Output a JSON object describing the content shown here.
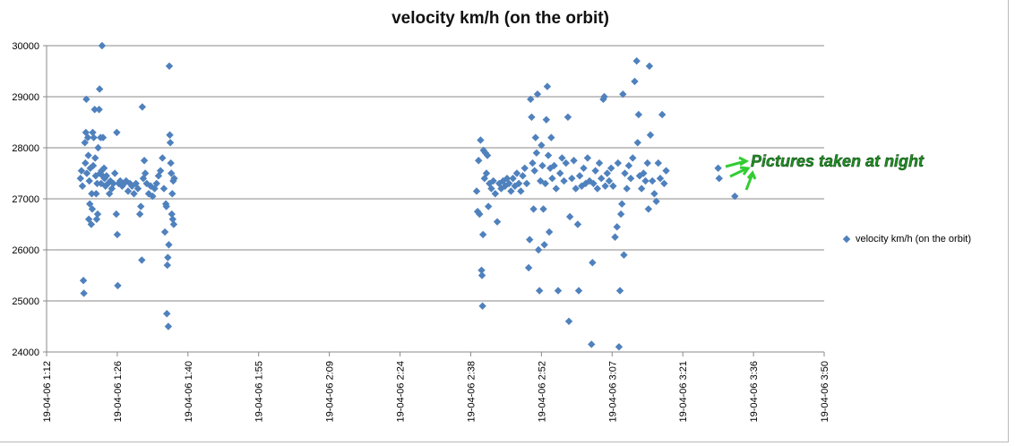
{
  "chart_data": {
    "type": "scatter",
    "title": "velocity km/h (on the orbit)",
    "xlabel": "",
    "ylabel": "",
    "ylim": [
      24000,
      30000
    ],
    "yticks": [
      24000,
      25000,
      26000,
      27000,
      28000,
      29000,
      30000
    ],
    "xticks": [
      "19-04-06 1:12",
      "19-04-06 1:26",
      "19-04-06 1:40",
      "19-04-06 1:55",
      "19-04-06 2:09",
      "19-04-06 2:24",
      "19-04-06 2:38",
      "19-04-06 2:52",
      "19-04-06 3:07",
      "19-04-06 3:21",
      "19-04-06 3:36",
      "19-04-06 3:50"
    ],
    "xtick_minutes": [
      72,
      86.4,
      100.8,
      115.2,
      129.6,
      144,
      158.4,
      172.8,
      187.2,
      201.6,
      216,
      230.4
    ],
    "x_unit": "minutes after 19-04-06 0:00",
    "grid": true,
    "legend_position": "right",
    "color": "#4f81bd",
    "series": [
      {
        "name": "velocity km/h (on the orbit)",
        "points": [
          [
            78.9,
            27400
          ],
          [
            79.1,
            27550
          ],
          [
            79.3,
            27250
          ],
          [
            79.5,
            25400
          ],
          [
            79.6,
            25150
          ],
          [
            79.8,
            28100
          ],
          [
            79.9,
            27700
          ],
          [
            80.0,
            28300
          ],
          [
            80.1,
            28950
          ],
          [
            80.2,
            27500
          ],
          [
            80.4,
            28200
          ],
          [
            80.5,
            27850
          ],
          [
            80.6,
            26600
          ],
          [
            80.7,
            27350
          ],
          [
            80.8,
            26900
          ],
          [
            80.9,
            27600
          ],
          [
            81.1,
            26500
          ],
          [
            81.2,
            27100
          ],
          [
            81.3,
            26800
          ],
          [
            81.4,
            28300
          ],
          [
            81.5,
            27650
          ],
          [
            81.6,
            28200
          ],
          [
            81.8,
            28750
          ],
          [
            81.9,
            27800
          ],
          [
            82.0,
            27450
          ],
          [
            82.1,
            27100
          ],
          [
            82.2,
            26600
          ],
          [
            82.3,
            27300
          ],
          [
            82.4,
            26700
          ],
          [
            82.5,
            28000
          ],
          [
            82.7,
            28750
          ],
          [
            82.8,
            29150
          ],
          [
            82.9,
            27500
          ],
          [
            83.0,
            28200
          ],
          [
            83.1,
            27300
          ],
          [
            83.2,
            27550
          ],
          [
            83.3,
            30000
          ],
          [
            83.4,
            27450
          ],
          [
            83.5,
            28200
          ],
          [
            83.7,
            27600
          ],
          [
            83.8,
            27400
          ],
          [
            84.0,
            27250
          ],
          [
            84.2,
            27450
          ],
          [
            84.5,
            27300
          ],
          [
            84.8,
            27100
          ],
          [
            85.0,
            27350
          ],
          [
            85.3,
            27200
          ],
          [
            85.6,
            27300
          ],
          [
            85.9,
            27500
          ],
          [
            86.2,
            26700
          ],
          [
            86.3,
            28300
          ],
          [
            86.4,
            26300
          ],
          [
            86.5,
            25300
          ],
          [
            86.7,
            27300
          ],
          [
            87.0,
            27350
          ],
          [
            87.4,
            27250
          ],
          [
            87.8,
            27300
          ],
          [
            88.2,
            27350
          ],
          [
            88.6,
            27150
          ],
          [
            89.0,
            27300
          ],
          [
            89.4,
            27250
          ],
          [
            89.8,
            27100
          ],
          [
            90.2,
            27300
          ],
          [
            90.6,
            27200
          ],
          [
            91.0,
            26700
          ],
          [
            91.2,
            26850
          ],
          [
            91.4,
            25800
          ],
          [
            91.5,
            28800
          ],
          [
            91.7,
            27400
          ],
          [
            91.9,
            27750
          ],
          [
            92.1,
            27500
          ],
          [
            92.4,
            27300
          ],
          [
            92.8,
            27100
          ],
          [
            93.2,
            27250
          ],
          [
            93.6,
            27050
          ],
          [
            94.0,
            27200
          ],
          [
            94.4,
            27300
          ],
          [
            94.8,
            27450
          ],
          [
            95.2,
            27550
          ],
          [
            95.6,
            27800
          ],
          [
            95.9,
            27200
          ],
          [
            96.1,
            26350
          ],
          [
            96.3,
            26900
          ],
          [
            96.4,
            26850
          ],
          [
            96.5,
            24750
          ],
          [
            96.6,
            25700
          ],
          [
            96.7,
            25850
          ],
          [
            96.8,
            24500
          ],
          [
            96.9,
            26100
          ],
          [
            97.0,
            29600
          ],
          [
            97.1,
            28250
          ],
          [
            97.2,
            28100
          ],
          [
            97.3,
            27700
          ],
          [
            97.4,
            27500
          ],
          [
            97.5,
            26700
          ],
          [
            97.6,
            27100
          ],
          [
            97.7,
            26600
          ],
          [
            97.8,
            27350
          ],
          [
            97.9,
            26500
          ],
          [
            98.0,
            27400
          ],
          [
            159.6,
            27150
          ],
          [
            159.8,
            26750
          ],
          [
            160.0,
            27750
          ],
          [
            160.2,
            26700
          ],
          [
            160.4,
            28150
          ],
          [
            160.6,
            25600
          ],
          [
            160.7,
            25500
          ],
          [
            160.8,
            24900
          ],
          [
            160.9,
            26300
          ],
          [
            161.0,
            27950
          ],
          [
            161.2,
            27400
          ],
          [
            161.4,
            27900
          ],
          [
            161.6,
            27500
          ],
          [
            161.8,
            27850
          ],
          [
            162.0,
            26850
          ],
          [
            162.2,
            27300
          ],
          [
            162.6,
            27200
          ],
          [
            163.0,
            27350
          ],
          [
            163.4,
            27100
          ],
          [
            163.8,
            26550
          ],
          [
            164.2,
            27300
          ],
          [
            164.6,
            27200
          ],
          [
            165.0,
            27350
          ],
          [
            165.4,
            27250
          ],
          [
            165.8,
            27400
          ],
          [
            166.2,
            27300
          ],
          [
            166.6,
            27150
          ],
          [
            167.0,
            27400
          ],
          [
            167.4,
            27250
          ],
          [
            167.8,
            27500
          ],
          [
            168.2,
            27300
          ],
          [
            168.6,
            27150
          ],
          [
            169.0,
            27450
          ],
          [
            169.4,
            27600
          ],
          [
            169.8,
            27300
          ],
          [
            170.2,
            25650
          ],
          [
            170.4,
            26200
          ],
          [
            170.6,
            28950
          ],
          [
            170.8,
            28600
          ],
          [
            171.0,
            27700
          ],
          [
            171.2,
            26800
          ],
          [
            171.4,
            27550
          ],
          [
            171.6,
            28200
          ],
          [
            171.8,
            27900
          ],
          [
            172.0,
            29050
          ],
          [
            172.2,
            26000
          ],
          [
            172.4,
            25200
          ],
          [
            172.6,
            27350
          ],
          [
            172.8,
            28050
          ],
          [
            173.0,
            27650
          ],
          [
            173.2,
            26800
          ],
          [
            173.4,
            26100
          ],
          [
            173.6,
            27300
          ],
          [
            173.8,
            28550
          ],
          [
            174.0,
            29200
          ],
          [
            174.2,
            27850
          ],
          [
            174.4,
            26350
          ],
          [
            174.6,
            27600
          ],
          [
            174.8,
            28200
          ],
          [
            175.0,
            27400
          ],
          [
            175.4,
            27650
          ],
          [
            175.8,
            27200
          ],
          [
            176.2,
            25200
          ],
          [
            176.6,
            27500
          ],
          [
            177.0,
            27800
          ],
          [
            177.4,
            27350
          ],
          [
            177.8,
            27700
          ],
          [
            178.2,
            28600
          ],
          [
            178.4,
            24600
          ],
          [
            178.6,
            26650
          ],
          [
            179.0,
            27400
          ],
          [
            179.4,
            27750
          ],
          [
            179.8,
            27200
          ],
          [
            180.2,
            26500
          ],
          [
            180.4,
            25200
          ],
          [
            180.6,
            27450
          ],
          [
            181.0,
            27250
          ],
          [
            181.4,
            27600
          ],
          [
            181.8,
            27300
          ],
          [
            182.2,
            27800
          ],
          [
            182.6,
            27350
          ],
          [
            183.0,
            24150
          ],
          [
            183.2,
            25750
          ],
          [
            183.4,
            27300
          ],
          [
            183.8,
            27550
          ],
          [
            184.2,
            27200
          ],
          [
            184.6,
            27700
          ],
          [
            185.0,
            27400
          ],
          [
            185.4,
            28950
          ],
          [
            185.6,
            29000
          ],
          [
            185.8,
            27250
          ],
          [
            186.2,
            27500
          ],
          [
            186.6,
            27350
          ],
          [
            187.0,
            27600
          ],
          [
            187.4,
            27250
          ],
          [
            187.8,
            26250
          ],
          [
            188.2,
            26450
          ],
          [
            188.4,
            27700
          ],
          [
            188.6,
            24100
          ],
          [
            188.8,
            25200
          ],
          [
            189.0,
            26700
          ],
          [
            189.2,
            26900
          ],
          [
            189.4,
            29050
          ],
          [
            189.6,
            25900
          ],
          [
            189.8,
            27500
          ],
          [
            190.2,
            27200
          ],
          [
            190.6,
            27650
          ],
          [
            191.0,
            27400
          ],
          [
            191.4,
            27800
          ],
          [
            191.8,
            29300
          ],
          [
            192.2,
            29700
          ],
          [
            192.4,
            28100
          ],
          [
            192.6,
            28650
          ],
          [
            192.8,
            27450
          ],
          [
            193.2,
            27200
          ],
          [
            193.6,
            27500
          ],
          [
            194.0,
            27350
          ],
          [
            194.4,
            27700
          ],
          [
            194.6,
            26800
          ],
          [
            194.8,
            29600
          ],
          [
            195.0,
            28250
          ],
          [
            195.4,
            27350
          ],
          [
            195.8,
            27100
          ],
          [
            196.2,
            26950
          ],
          [
            196.6,
            27700
          ],
          [
            197.0,
            27400
          ],
          [
            197.4,
            28650
          ],
          [
            197.8,
            27300
          ],
          [
            198.2,
            27550
          ],
          [
            208.8,
            27600
          ],
          [
            209.0,
            27400
          ],
          [
            212.2,
            27050
          ]
        ]
      }
    ],
    "annotations": [
      {
        "text": "Pictures taken at night"
      }
    ]
  }
}
